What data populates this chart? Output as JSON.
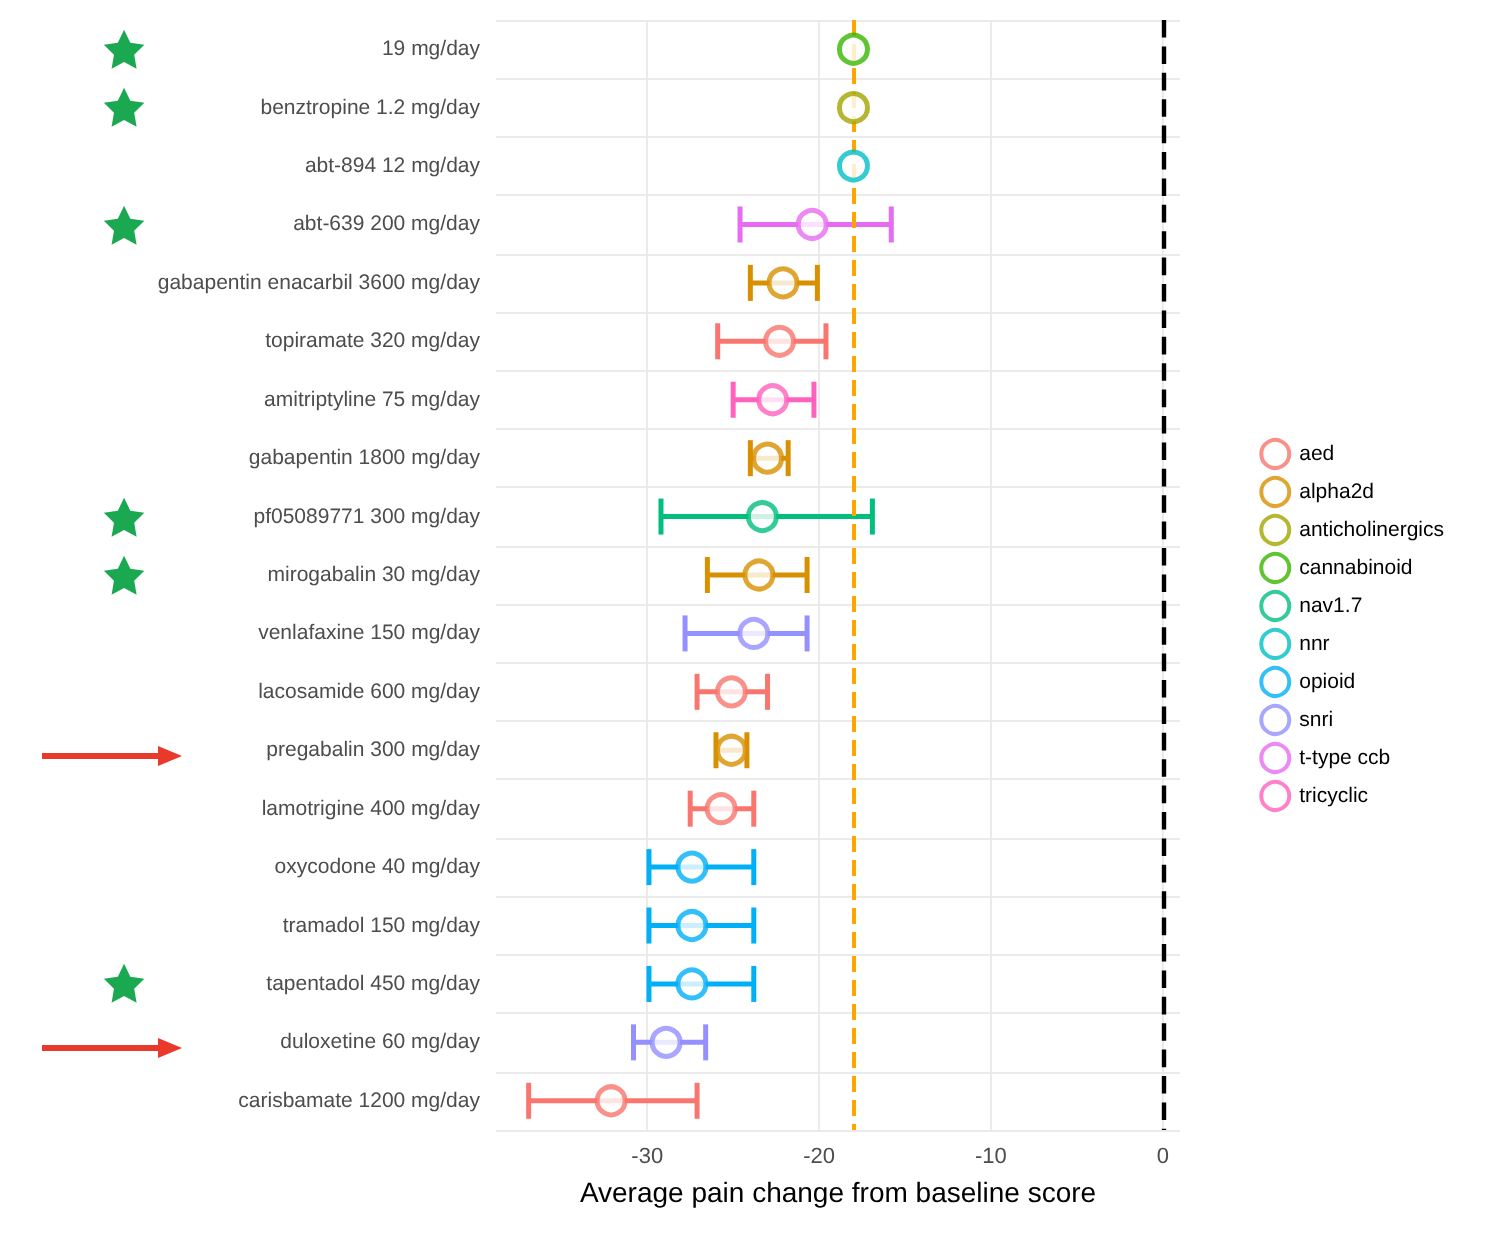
{
  "chart_data": {
    "type": "scatter",
    "orientation": "horizontal",
    "xlabel": "Average pain change from baseline score",
    "categories": [
      "19 mg/day",
      "benztropine 1.2 mg/day",
      "abt-894 12 mg/day",
      "abt-639 200 mg/day",
      "gabapentin enacarbil 3600 mg/day",
      "topiramate 320 mg/day",
      "amitriptyline 75 mg/day",
      "gabapentin 1800 mg/day",
      "pf05089771 300 mg/day",
      "mirogabalin 30 mg/day",
      "venlafaxine 150 mg/day",
      "lacosamide 600 mg/day",
      "pregabalin 300 mg/day",
      "lamotrigine 400 mg/day",
      "oxycodone 40 mg/day",
      "tramadol 150 mg/day",
      "tapentadol 450 mg/day",
      "duloxetine 60 mg/day",
      "carisbamate 1200 mg/day"
    ],
    "series": [
      {
        "name": "aed",
        "color": "#f8766d",
        "values": [
          null,
          null,
          null,
          null,
          null,
          -22.3,
          null,
          null,
          null,
          null,
          null,
          -25.1,
          null,
          -25.7,
          null,
          null,
          null,
          null,
          -32.1
        ],
        "errors": [
          null,
          null,
          null,
          null,
          null,
          [
            -25.9,
            -19.6
          ],
          null,
          null,
          null,
          null,
          null,
          [
            -27.1,
            -23.0
          ],
          null,
          [
            -27.5,
            -23.8
          ],
          null,
          null,
          null,
          null,
          [
            -36.9,
            -27.1
          ]
        ]
      },
      {
        "name": "alpha2d",
        "color": "#d89000",
        "values": [
          null,
          null,
          null,
          null,
          -22.1,
          null,
          null,
          -23.0,
          null,
          -23.5,
          null,
          null,
          -25.1,
          null,
          null,
          null,
          null,
          null,
          null
        ],
        "errors": [
          null,
          null,
          null,
          null,
          [
            -24.0,
            -20.1
          ],
          null,
          null,
          [
            -24.0,
            -21.8
          ],
          null,
          [
            -26.5,
            -20.7
          ],
          null,
          null,
          [
            -26.0,
            -24.2
          ],
          null,
          null,
          null,
          null,
          null,
          null
        ]
      },
      {
        "name": "anticholinergics",
        "color": "#a3a500",
        "values": [
          null,
          -18.0,
          null,
          null,
          null,
          null,
          null,
          null,
          null,
          null,
          null,
          null,
          null,
          null,
          null,
          null,
          null,
          null,
          null
        ],
        "errors": [
          null,
          null,
          null,
          null,
          null,
          null,
          null,
          null,
          null,
          null,
          null,
          null,
          null,
          null,
          null,
          null,
          null,
          null,
          null
        ]
      },
      {
        "name": "cannabinoid",
        "color": "#39b600",
        "values": [
          -18.0,
          null,
          null,
          null,
          null,
          null,
          null,
          null,
          null,
          null,
          null,
          null,
          null,
          null,
          null,
          null,
          null,
          null,
          null
        ],
        "errors": [
          null,
          null,
          null,
          null,
          null,
          null,
          null,
          null,
          null,
          null,
          null,
          null,
          null,
          null,
          null,
          null,
          null,
          null,
          null
        ]
      },
      {
        "name": "nav1.7",
        "color": "#00bf7d",
        "values": [
          null,
          null,
          null,
          null,
          null,
          null,
          null,
          null,
          -23.3,
          null,
          null,
          null,
          null,
          null,
          null,
          null,
          null,
          null,
          null
        ],
        "errors": [
          null,
          null,
          null,
          null,
          null,
          null,
          null,
          null,
          [
            -29.2,
            -16.9
          ],
          null,
          null,
          null,
          null,
          null,
          null,
          null,
          null,
          null,
          null
        ]
      },
      {
        "name": "nnr",
        "color": "#00bfc4",
        "values": [
          null,
          null,
          -18.0,
          null,
          null,
          null,
          null,
          null,
          null,
          null,
          null,
          null,
          null,
          null,
          null,
          null,
          null,
          null,
          null
        ],
        "errors": [
          null,
          null,
          null,
          null,
          null,
          null,
          null,
          null,
          null,
          null,
          null,
          null,
          null,
          null,
          null,
          null,
          null,
          null,
          null
        ]
      },
      {
        "name": "opioid",
        "color": "#00b0f6",
        "values": [
          null,
          null,
          null,
          null,
          null,
          null,
          null,
          null,
          null,
          null,
          null,
          null,
          null,
          null,
          -27.4,
          -27.4,
          -27.4,
          null,
          null
        ],
        "errors": [
          null,
          null,
          null,
          null,
          null,
          null,
          null,
          null,
          null,
          null,
          null,
          null,
          null,
          null,
          [
            -29.9,
            -23.8
          ],
          [
            -29.9,
            -23.8
          ],
          [
            -29.9,
            -23.8
          ],
          null,
          null
        ]
      },
      {
        "name": "snri",
        "color": "#9590ff",
        "values": [
          null,
          null,
          null,
          null,
          null,
          null,
          null,
          null,
          null,
          null,
          -23.8,
          null,
          null,
          null,
          null,
          null,
          null,
          -28.9,
          null
        ],
        "errors": [
          null,
          null,
          null,
          null,
          null,
          null,
          null,
          null,
          null,
          null,
          [
            -27.8,
            -20.7
          ],
          null,
          null,
          null,
          null,
          null,
          null,
          [
            -30.8,
            -26.6
          ],
          null
        ]
      },
      {
        "name": "t-type ccb",
        "color": "#e76bf3",
        "values": [
          null,
          null,
          null,
          -20.4,
          null,
          null,
          null,
          null,
          null,
          null,
          null,
          null,
          null,
          null,
          null,
          null,
          null,
          null,
          null
        ],
        "errors": [
          null,
          null,
          null,
          [
            -24.6,
            -15.8
          ],
          null,
          null,
          null,
          null,
          null,
          null,
          null,
          null,
          null,
          null,
          null,
          null,
          null,
          null,
          null
        ]
      },
      {
        "name": "tricyclic",
        "color": "#ff62bc",
        "values": [
          null,
          null,
          null,
          null,
          null,
          null,
          -22.7,
          null,
          null,
          null,
          null,
          null,
          null,
          null,
          null,
          null,
          null,
          null,
          null
        ],
        "errors": [
          null,
          null,
          null,
          null,
          null,
          null,
          [
            -25.0,
            -20.3
          ],
          null,
          null,
          null,
          null,
          null,
          null,
          null,
          null,
          null,
          null,
          null,
          null
        ]
      }
    ],
    "xlim": [
      -38.8,
      1
    ],
    "xticks": [
      -30,
      -20,
      -10,
      0
    ],
    "ref_lines": [
      {
        "axis": "x",
        "value": -18,
        "color": "#ffa500",
        "line_style": "dashed"
      },
      {
        "axis": "x",
        "value": 0,
        "color": "#000000",
        "line_style": "dashed"
      }
    ],
    "grid": true,
    "legend": "right",
    "marker": "circle"
  }
}
